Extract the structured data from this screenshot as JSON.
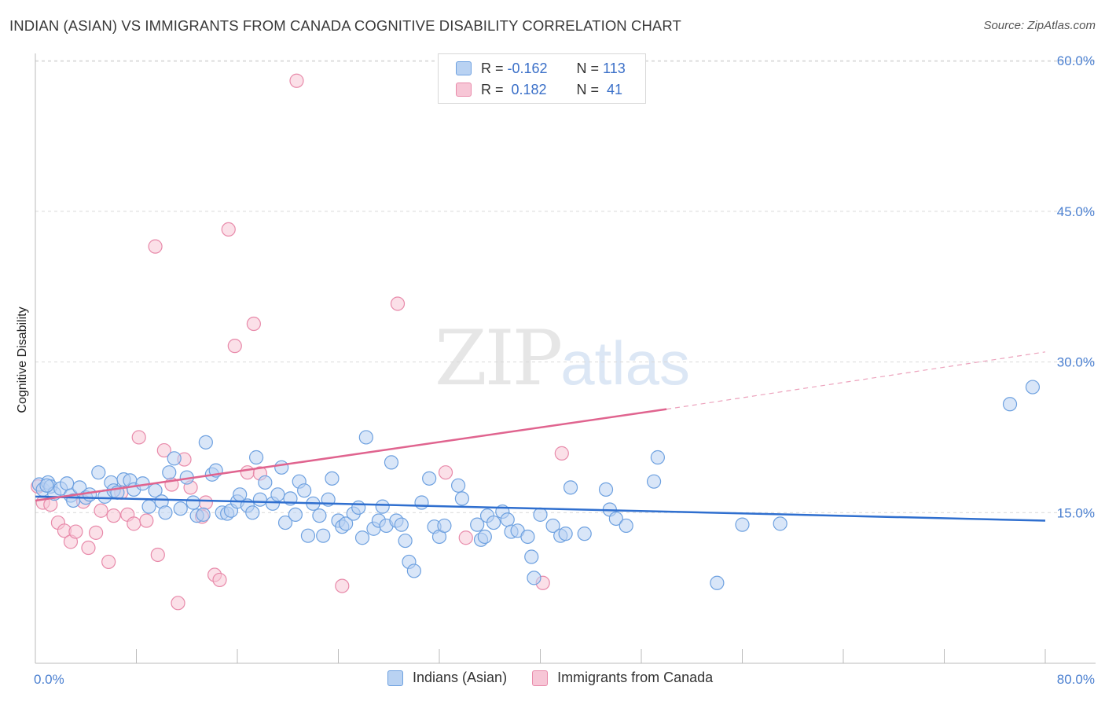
{
  "title": "INDIAN (ASIAN) VS IMMIGRANTS FROM CANADA COGNITIVE DISABILITY CORRELATION CHART",
  "source": "Source: ZipAtlas.com",
  "watermark": {
    "zip": "ZIP",
    "atlas": "atlas"
  },
  "legend": {
    "row1": {
      "r_label": "R = ",
      "r_value": "-0.162",
      "n_label": "N = ",
      "n_value": "113"
    },
    "row2": {
      "r_label": "R = ",
      "r_value": " 0.182",
      "n_label": "N = ",
      "n_value": " 41"
    }
  },
  "bottom_legend": {
    "series1": "Indians (Asian)",
    "series2": "Immigrants from Canada"
  },
  "colors": {
    "blue": "#6ea1e0",
    "blue_fill": "#b9d2f2",
    "pink": "#e88aaa",
    "pink_fill": "#f7c6d6",
    "blue_line": "#2f6fcf",
    "pink_line": "#e0648f",
    "grid": "#d9d9d9"
  },
  "chart_data": {
    "type": "scatter",
    "title": "INDIAN (ASIAN) VS IMMIGRANTS FROM CANADA COGNITIVE DISABILITY CORRELATION CHART",
    "xlabel": "",
    "ylabel": "Cognitive Disability",
    "xlim": [
      0,
      80
    ],
    "ylim": [
      0,
      63
    ],
    "x_tick_labels": [
      "0.0%",
      "80.0%"
    ],
    "y_ticks": [
      15,
      30,
      45,
      60
    ],
    "y_tick_labels": [
      "15.0%",
      "30.0%",
      "45.0%",
      "60.0%"
    ],
    "grid": true,
    "legend_position": "top-center",
    "series": [
      {
        "name": "Indians (Asian)",
        "stats": {
          "R": -0.162,
          "N": 113
        },
        "trend": {
          "x": [
            0,
            80
          ],
          "y": [
            16.6,
            14.2
          ]
        },
        "points": [
          [
            0.3,
            17.8
          ],
          [
            0.6,
            17.3
          ],
          [
            1.0,
            18.0
          ],
          [
            1.2,
            17.6
          ],
          [
            1.5,
            16.9
          ],
          [
            2.0,
            17.4
          ],
          [
            2.5,
            17.9
          ],
          [
            2.8,
            16.7
          ],
          [
            3.0,
            16.2
          ],
          [
            3.5,
            17.5
          ],
          [
            4.0,
            16.5
          ],
          [
            4.3,
            16.8
          ],
          [
            5.0,
            19.0
          ],
          [
            5.5,
            16.6
          ],
          [
            6.0,
            18.0
          ],
          [
            6.2,
            17.2
          ],
          [
            6.5,
            17.0
          ],
          [
            7.0,
            18.3
          ],
          [
            7.5,
            18.2
          ],
          [
            7.8,
            17.3
          ],
          [
            8.5,
            17.9
          ],
          [
            9.0,
            15.6
          ],
          [
            9.5,
            17.2
          ],
          [
            10.0,
            16.1
          ],
          [
            10.3,
            15.0
          ],
          [
            10.6,
            19.0
          ],
          [
            11.0,
            20.4
          ],
          [
            11.5,
            15.4
          ],
          [
            12.0,
            18.5
          ],
          [
            12.5,
            16.0
          ],
          [
            12.8,
            14.7
          ],
          [
            13.3,
            14.8
          ],
          [
            13.5,
            22.0
          ],
          [
            14.0,
            18.8
          ],
          [
            14.3,
            19.2
          ],
          [
            14.8,
            15.0
          ],
          [
            15.2,
            14.9
          ],
          [
            15.5,
            15.2
          ],
          [
            16.0,
            16.1
          ],
          [
            16.2,
            16.8
          ],
          [
            16.8,
            15.7
          ],
          [
            17.2,
            15.0
          ],
          [
            17.5,
            20.5
          ],
          [
            17.8,
            16.3
          ],
          [
            18.2,
            18.0
          ],
          [
            18.8,
            15.9
          ],
          [
            19.2,
            16.8
          ],
          [
            19.5,
            19.5
          ],
          [
            19.8,
            14.0
          ],
          [
            20.2,
            16.4
          ],
          [
            20.6,
            14.8
          ],
          [
            20.9,
            18.1
          ],
          [
            21.3,
            17.2
          ],
          [
            21.6,
            12.7
          ],
          [
            22.0,
            15.9
          ],
          [
            22.5,
            14.7
          ],
          [
            22.8,
            12.7
          ],
          [
            23.2,
            16.3
          ],
          [
            23.5,
            18.4
          ],
          [
            24.0,
            14.2
          ],
          [
            24.3,
            13.6
          ],
          [
            24.6,
            13.9
          ],
          [
            25.2,
            14.9
          ],
          [
            25.6,
            15.5
          ],
          [
            25.9,
            12.5
          ],
          [
            26.2,
            22.5
          ],
          [
            26.8,
            13.4
          ],
          [
            27.2,
            14.2
          ],
          [
            27.5,
            15.6
          ],
          [
            27.8,
            13.7
          ],
          [
            28.2,
            20.0
          ],
          [
            28.6,
            14.2
          ],
          [
            29.0,
            13.8
          ],
          [
            29.3,
            12.2
          ],
          [
            29.6,
            10.1
          ],
          [
            30.0,
            9.2
          ],
          [
            30.6,
            16.0
          ],
          [
            31.2,
            18.4
          ],
          [
            31.6,
            13.6
          ],
          [
            32.0,
            12.6
          ],
          [
            32.4,
            13.7
          ],
          [
            33.5,
            17.7
          ],
          [
            33.8,
            16.4
          ],
          [
            35.0,
            13.8
          ],
          [
            35.3,
            12.3
          ],
          [
            35.6,
            12.6
          ],
          [
            35.8,
            14.7
          ],
          [
            36.3,
            14.0
          ],
          [
            37.0,
            15.1
          ],
          [
            37.4,
            14.3
          ],
          [
            37.7,
            13.1
          ],
          [
            38.2,
            13.2
          ],
          [
            39.0,
            12.6
          ],
          [
            39.3,
            10.6
          ],
          [
            39.5,
            8.5
          ],
          [
            40.0,
            14.8
          ],
          [
            41.0,
            13.7
          ],
          [
            41.6,
            12.7
          ],
          [
            42.0,
            12.9
          ],
          [
            42.4,
            17.5
          ],
          [
            43.5,
            12.9
          ],
          [
            45.2,
            17.3
          ],
          [
            45.5,
            15.3
          ],
          [
            46.0,
            14.4
          ],
          [
            46.8,
            13.7
          ],
          [
            49.0,
            18.1
          ],
          [
            49.3,
            20.5
          ],
          [
            54.0,
            8.0
          ],
          [
            56.0,
            13.8
          ],
          [
            59.0,
            13.9
          ],
          [
            77.2,
            25.8
          ],
          [
            79.0,
            27.5
          ],
          [
            0.9,
            17.7
          ]
        ]
      },
      {
        "name": "Immigrants from Canada",
        "stats": {
          "R": 0.182,
          "N": 41
        },
        "trend": {
          "x": [
            0,
            50
          ],
          "y": [
            16.2,
            25.3
          ]
        },
        "trend_dashed": {
          "x": [
            50,
            80
          ],
          "y": [
            25.3,
            31.0
          ]
        },
        "points": [
          [
            0.2,
            17.6
          ],
          [
            0.6,
            16.0
          ],
          [
            1.2,
            15.8
          ],
          [
            1.8,
            14.0
          ],
          [
            2.3,
            13.2
          ],
          [
            2.8,
            12.1
          ],
          [
            3.2,
            13.1
          ],
          [
            3.8,
            16.1
          ],
          [
            4.2,
            11.5
          ],
          [
            4.8,
            13.0
          ],
          [
            5.2,
            15.2
          ],
          [
            5.8,
            10.1
          ],
          [
            6.2,
            14.7
          ],
          [
            6.8,
            17.0
          ],
          [
            7.3,
            14.8
          ],
          [
            7.8,
            13.9
          ],
          [
            8.2,
            22.5
          ],
          [
            8.8,
            14.2
          ],
          [
            9.5,
            41.5
          ],
          [
            9.7,
            10.8
          ],
          [
            10.2,
            21.2
          ],
          [
            10.8,
            17.8
          ],
          [
            11.3,
            6.0
          ],
          [
            11.8,
            20.3
          ],
          [
            12.3,
            17.5
          ],
          [
            13.2,
            14.6
          ],
          [
            13.5,
            16.0
          ],
          [
            14.2,
            8.8
          ],
          [
            14.6,
            8.3
          ],
          [
            15.3,
            43.2
          ],
          [
            15.8,
            31.6
          ],
          [
            16.8,
            19.0
          ],
          [
            17.3,
            33.8
          ],
          [
            17.8,
            18.9
          ],
          [
            20.7,
            58.0
          ],
          [
            24.3,
            7.7
          ],
          [
            28.7,
            35.8
          ],
          [
            32.5,
            19.0
          ],
          [
            34.1,
            12.5
          ],
          [
            40.2,
            8.0
          ],
          [
            41.7,
            20.9
          ]
        ]
      }
    ]
  }
}
